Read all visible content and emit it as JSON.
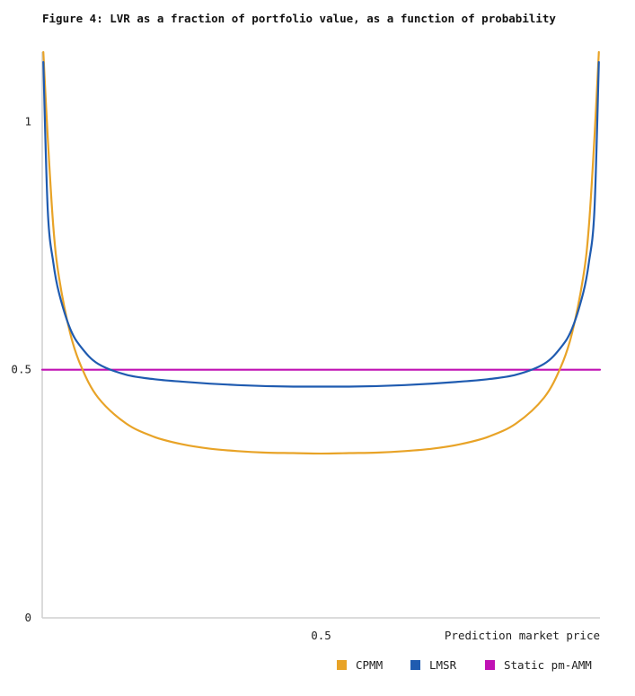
{
  "chart_data": {
    "type": "line",
    "title": "Figure 4: LVR as a fraction of portfolio value, as a function of probability",
    "xlabel": "Prediction market price",
    "ylabel": "",
    "xlim": [
      0,
      1
    ],
    "ylim": [
      0,
      1.14
    ],
    "x_ticks": [
      {
        "value": 0.5,
        "label": "0.5"
      }
    ],
    "y_ticks": [
      {
        "value": 0,
        "label": "0"
      },
      {
        "value": 0.5,
        "label": "0.5"
      },
      {
        "value": 1,
        "label": "1"
      }
    ],
    "grid": false,
    "legend_position": "bottom-right",
    "series": [
      {
        "name": "CPMM",
        "color": "#E8A327",
        "x": [
          0.002,
          0.01,
          0.02,
          0.03,
          0.05,
          0.07,
          0.1,
          0.15,
          0.2,
          0.25,
          0.3,
          0.35,
          0.4,
          0.45,
          0.5,
          0.55,
          0.6,
          0.65,
          0.7,
          0.75,
          0.8,
          0.85,
          0.9,
          0.93,
          0.95,
          0.97,
          0.98,
          0.99,
          0.998
        ],
        "values": [
          1.14,
          0.966,
          0.787,
          0.687,
          0.574,
          0.506,
          0.444,
          0.392,
          0.365,
          0.35,
          0.341,
          0.336,
          0.333,
          0.332,
          0.331,
          0.332,
          0.333,
          0.336,
          0.341,
          0.35,
          0.365,
          0.392,
          0.444,
          0.506,
          0.574,
          0.687,
          0.787,
          0.966,
          1.14
        ]
      },
      {
        "name": "LMSR",
        "color": "#1F5BB0",
        "x": [
          0.002,
          0.01,
          0.02,
          0.03,
          0.05,
          0.07,
          0.1,
          0.15,
          0.2,
          0.25,
          0.3,
          0.35,
          0.4,
          0.45,
          0.5,
          0.55,
          0.6,
          0.65,
          0.7,
          0.75,
          0.8,
          0.85,
          0.9,
          0.93,
          0.95,
          0.97,
          0.98,
          0.99,
          0.998
        ],
        "values": [
          1.12,
          0.82,
          0.715,
          0.655,
          0.583,
          0.545,
          0.512,
          0.49,
          0.481,
          0.476,
          0.472,
          0.469,
          0.467,
          0.466,
          0.466,
          0.466,
          0.467,
          0.469,
          0.472,
          0.476,
          0.481,
          0.49,
          0.512,
          0.545,
          0.583,
          0.655,
          0.715,
          0.82,
          1.12
        ]
      },
      {
        "name": "Static pm-AMM",
        "color": "#C012B4",
        "x": [
          0,
          1
        ],
        "values": [
          0.5,
          0.5
        ]
      }
    ]
  }
}
